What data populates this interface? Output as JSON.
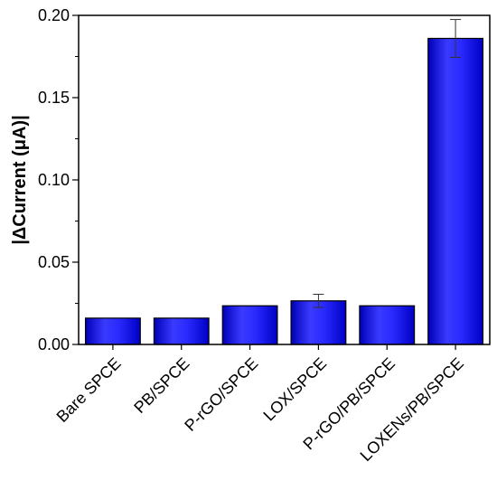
{
  "chart_data": {
    "type": "bar",
    "title": "",
    "xlabel": "",
    "ylabel": "|ΔCurrent (μA)|",
    "categories": [
      "Bare SPCE",
      "PB/SPCE",
      "P-rGO/SPCE",
      "LOX/SPCE",
      "P-rGO/PB/SPCE",
      "LOXENs/PB/SPCE"
    ],
    "values": [
      0.016,
      0.016,
      0.0235,
      0.0265,
      0.0235,
      0.186
    ],
    "errors": [
      0.0,
      0.0,
      0.0,
      0.004,
      0.0,
      0.0115
    ],
    "ylim": [
      0,
      0.2
    ],
    "yticks": [
      "0.00",
      "0.05",
      "0.10",
      "0.15",
      "0.20"
    ],
    "grid": false,
    "bar_color": "#1a1aff"
  }
}
